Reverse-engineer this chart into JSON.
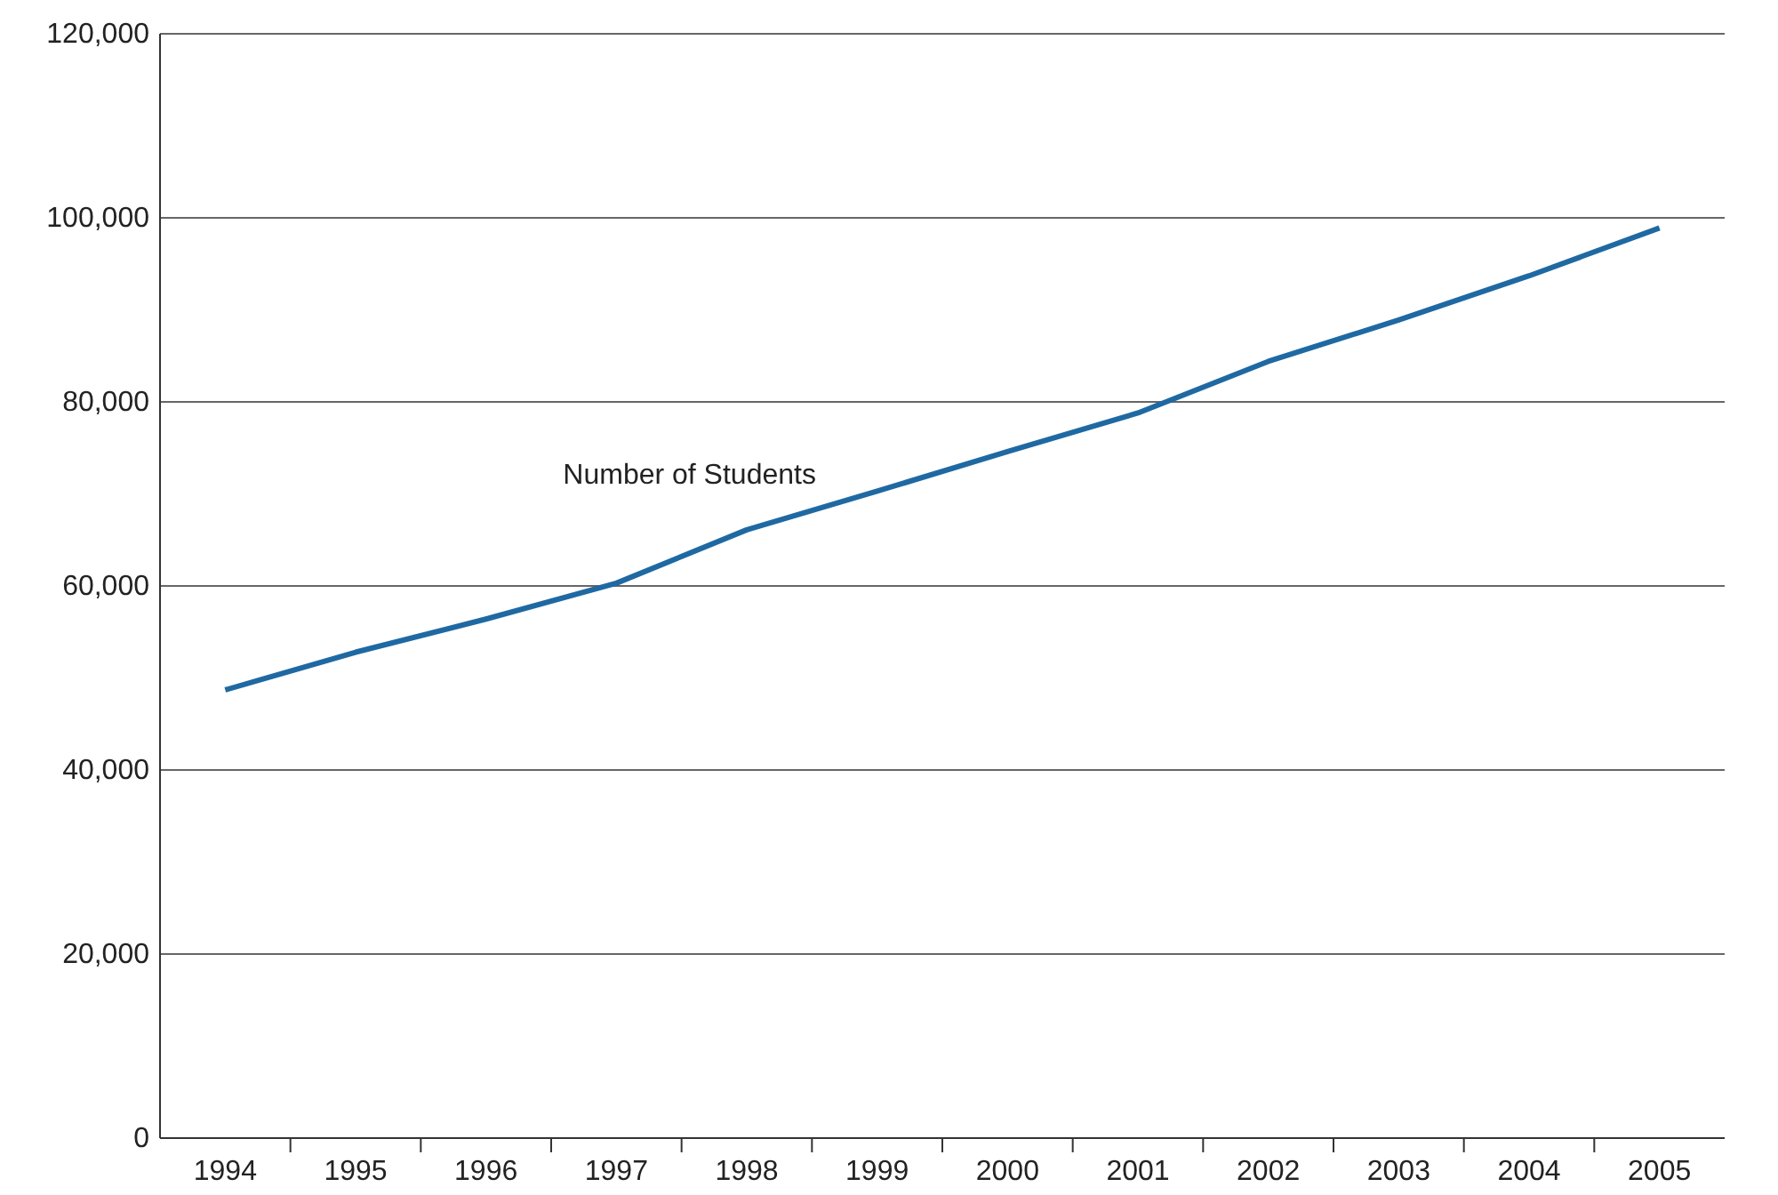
{
  "chart_data": {
    "type": "line",
    "categories": [
      "1994",
      "1995",
      "1996",
      "1997",
      "1998",
      "1999",
      "2000",
      "2001",
      "2002",
      "2003",
      "2004",
      "2005"
    ],
    "series": [
      {
        "name": "Number of Students",
        "color": "#1f69a3",
        "values": [
          48700,
          52800,
          56400,
          60300,
          66100,
          70300,
          74600,
          78800,
          84400,
          88900,
          93700,
          98900
        ]
      }
    ],
    "ylim": [
      0,
      120000
    ],
    "yticks": [
      {
        "value": 0,
        "label": "0"
      },
      {
        "value": 20000,
        "label": "20,000"
      },
      {
        "value": 40000,
        "label": "40,000"
      },
      {
        "value": 60000,
        "label": "60,000"
      },
      {
        "value": 80000,
        "label": "80,000"
      },
      {
        "value": 100000,
        "label": "100,000"
      },
      {
        "value": 120000,
        "label": "120,000"
      }
    ],
    "grid": "y",
    "legend": false,
    "marker": "none",
    "line_style": "solid"
  }
}
